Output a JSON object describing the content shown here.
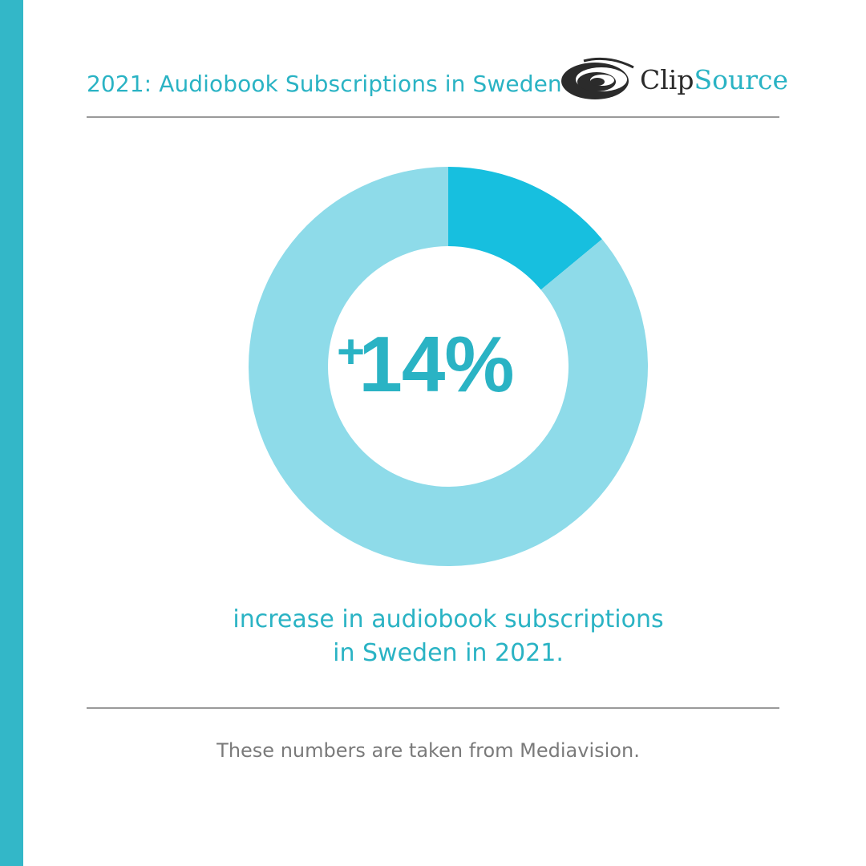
{
  "header": {
    "title": "2021: Audiobook Subscriptions in Sweden",
    "logo_part1": "Clip",
    "logo_part2": "Source"
  },
  "colors": {
    "accent_bar": "#33b7c8",
    "text_teal": "#2ab3c4",
    "highlight_segment": "#17bfdf",
    "remaining_segment": "#8edbe9"
  },
  "chart_data": {
    "type": "pie",
    "variant": "donut",
    "value_percent": 14,
    "display_value": "14%",
    "prefix": "+",
    "slices": [
      {
        "value": 14
      },
      {
        "value": 86
      }
    ]
  },
  "caption": {
    "line1": "increase in audiobook subscriptions",
    "line2": "in Sweden in 2021."
  },
  "footer": {
    "source": "These numbers are taken from Mediavision."
  }
}
